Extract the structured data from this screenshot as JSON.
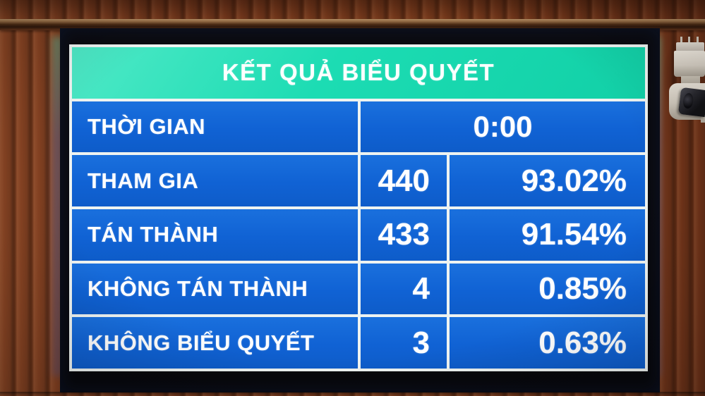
{
  "board": {
    "title": "KẾT QUẢ BIỂU QUYẾT",
    "time_row": {
      "label": "THỜI GIAN",
      "value": "0:00"
    },
    "rows": [
      {
        "label": "THAM GIA",
        "count": "440",
        "percent": "93.02%"
      },
      {
        "label": "TÁN THÀNH",
        "count": "433",
        "percent": "91.54%"
      },
      {
        "label": "KHÔNG TÁN THÀNH",
        "count": "4",
        "percent": "0.85%"
      },
      {
        "label": "KHÔNG BIỂU QUYẾT",
        "count": "3",
        "percent": "0.63%"
      }
    ]
  },
  "icons": {
    "camera": "security-camera"
  },
  "colors": {
    "header_teal": "#1cdcb3",
    "row_blue": "#1062d4",
    "grid_white": "#eef3f1",
    "bezel_black": "#0b0b10",
    "wood_brown": "#7b3b1e",
    "text_white": "#ffffff"
  }
}
